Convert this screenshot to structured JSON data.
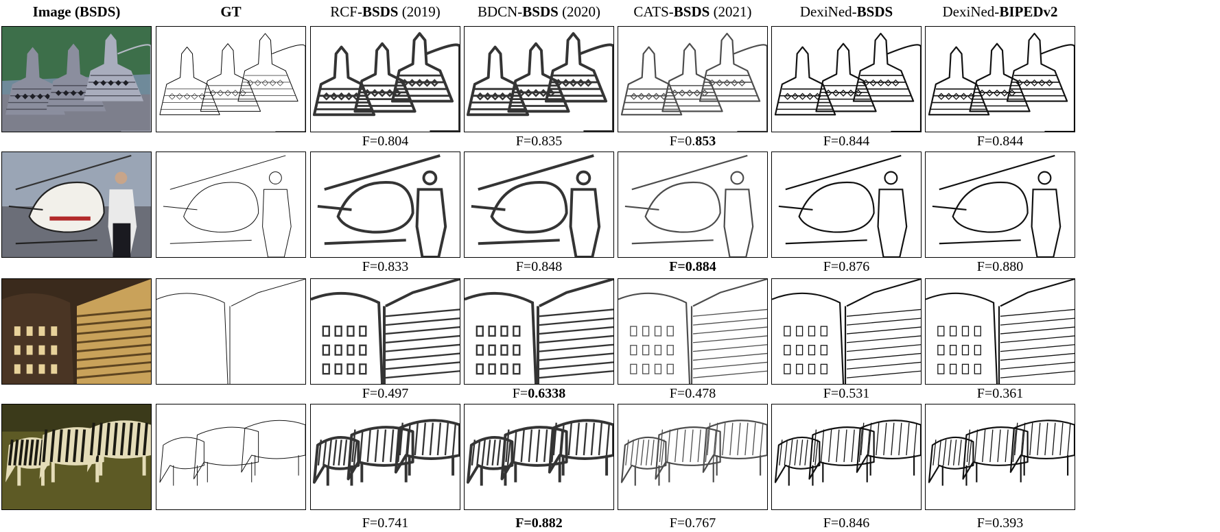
{
  "columns": [
    {
      "pre": "",
      "bold": "Image (BSDS)",
      "post": "",
      "all_bold": true
    },
    {
      "pre": "",
      "bold": "GT",
      "post": "",
      "all_bold": true
    },
    {
      "pre": "RCF-",
      "bold": "BSDS",
      "post": " (2019)",
      "all_bold": false
    },
    {
      "pre": "BDCN-",
      "bold": "BSDS",
      "post": " (2020)",
      "all_bold": false
    },
    {
      "pre": "CATS-",
      "bold": "BSDS",
      "post": " (2021)",
      "all_bold": false
    },
    {
      "pre": "DexiNed-",
      "bold": "BSDS",
      "post": "",
      "all_bold": false
    },
    {
      "pre": "DexiNed-",
      "bold": "BIPEDv2",
      "post": "",
      "all_bold": false
    }
  ],
  "rows": [
    {
      "subject": "stupas",
      "scores": [
        {
          "pre": "F=0.804",
          "bold": "",
          "all_bold": false
        },
        {
          "pre": "F=0.835",
          "bold": "",
          "all_bold": false
        },
        {
          "pre": "F=0.",
          "bold": "853",
          "all_bold": false
        },
        {
          "pre": "F=0.844",
          "bold": "",
          "all_bold": false
        },
        {
          "pre": "F=0.844",
          "bold": "",
          "all_bold": false
        }
      ]
    },
    {
      "subject": "helicopter",
      "scores": [
        {
          "pre": "F=0.833",
          "bold": "",
          "all_bold": false
        },
        {
          "pre": "F=0.848",
          "bold": "",
          "all_bold": false
        },
        {
          "pre": "F=0.884",
          "bold": "",
          "all_bold": true
        },
        {
          "pre": "F=0.876",
          "bold": "",
          "all_bold": false
        },
        {
          "pre": "F=0.880",
          "bold": "",
          "all_bold": false
        }
      ]
    },
    {
      "subject": "buildings",
      "scores": [
        {
          "pre": "F=0.497",
          "bold": "",
          "all_bold": false
        },
        {
          "pre": "F=",
          "bold": "0.6338",
          "all_bold": false
        },
        {
          "pre": "F=0.478",
          "bold": "",
          "all_bold": false
        },
        {
          "pre": "F=0.531",
          "bold": "",
          "all_bold": false
        },
        {
          "pre": "F=0.361",
          "bold": "",
          "all_bold": false
        }
      ]
    },
    {
      "subject": "zebras",
      "scores": [
        {
          "pre": "F=0.741",
          "bold": "",
          "all_bold": false
        },
        {
          "pre": "F=0.882",
          "bold": "",
          "all_bold": true
        },
        {
          "pre": "F=0.767",
          "bold": "",
          "all_bold": false
        },
        {
          "pre": "F=0.846",
          "bold": "",
          "all_bold": false
        },
        {
          "pre": "F=0.393",
          "bold": "",
          "all_bold": false
        }
      ]
    }
  ]
}
